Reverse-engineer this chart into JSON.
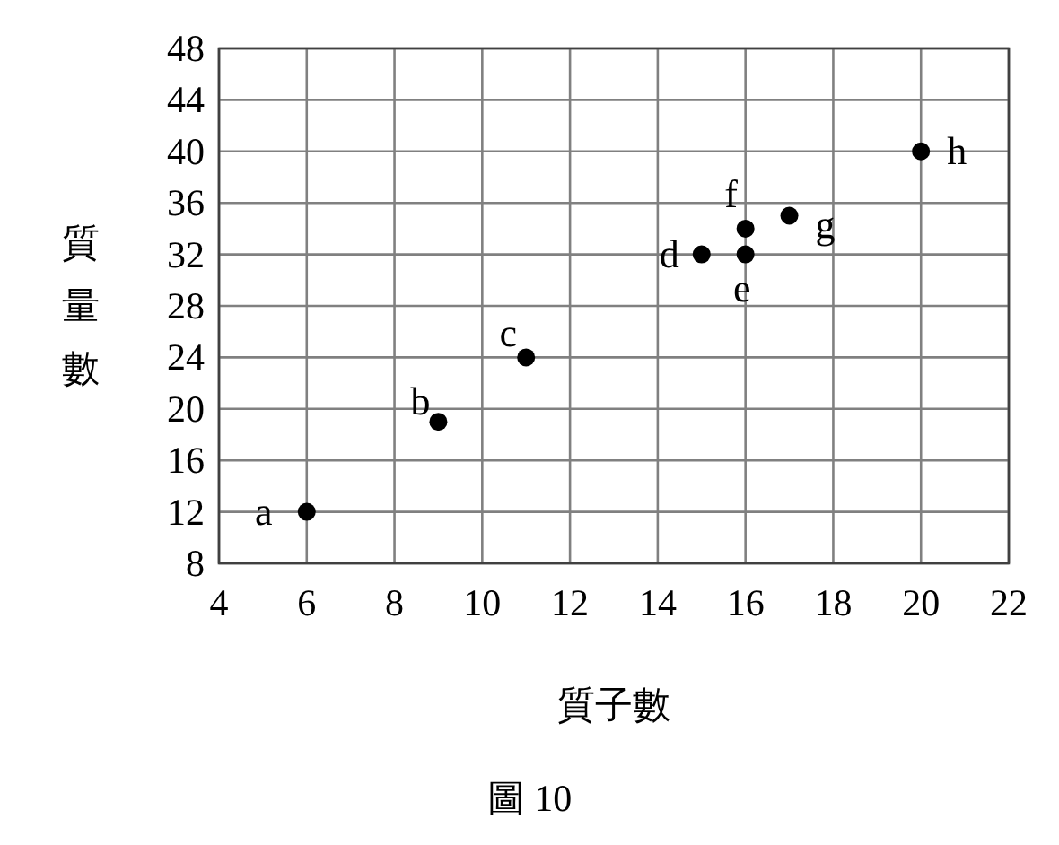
{
  "chart_data": {
    "type": "scatter",
    "xlabel": "質子數",
    "ylabel": "質量數",
    "x": [
      6,
      9,
      11,
      15,
      16,
      16,
      17,
      20
    ],
    "values": [
      12,
      19,
      24,
      32,
      32,
      34,
      35,
      40
    ],
    "color": "#000000",
    "marker": "circle",
    "grid": true,
    "xlim": [
      4,
      22
    ],
    "xticks": [
      4,
      6,
      8,
      10,
      12,
      14,
      16,
      18,
      20,
      22
    ],
    "ylim": [
      8,
      48
    ],
    "yticks": [
      8,
      12,
      16,
      20,
      24,
      28,
      32,
      36,
      40,
      44,
      48
    ],
    "annotations": [
      {
        "text": "a",
        "x": 6,
        "y": 12
      },
      {
        "text": "b",
        "x": 9,
        "y": 19
      },
      {
        "text": "c",
        "x": 11,
        "y": 24
      },
      {
        "text": "d",
        "x": 15,
        "y": 32
      },
      {
        "text": "e",
        "x": 16,
        "y": 32
      },
      {
        "text": "f",
        "x": 16,
        "y": 34
      },
      {
        "text": "g",
        "x": 17,
        "y": 35
      },
      {
        "text": "h",
        "x": 20,
        "y": 40
      },
      "圖 10"
    ]
  }
}
